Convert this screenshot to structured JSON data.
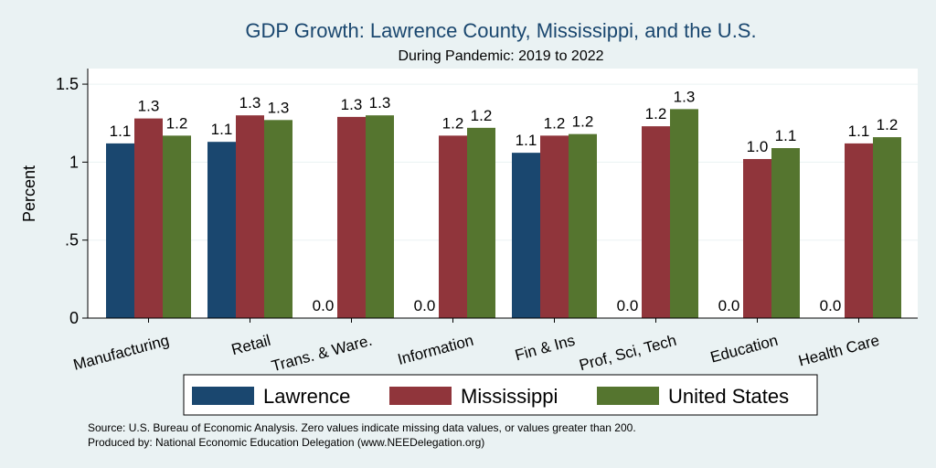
{
  "chart_data": {
    "type": "bar",
    "title": "GDP Growth: Lawrence County, Mississippi, and the U.S.",
    "subtitle": "During Pandemic: 2019 to 2022",
    "ylabel": "Percent",
    "ylim": [
      0,
      1.6
    ],
    "yticks": [
      0,
      0.5,
      1,
      1.5
    ],
    "ytick_labels": [
      "0",
      ".5",
      "1",
      "1.5"
    ],
    "grid": true,
    "legend_position": "bottom",
    "categories": [
      "Manufacturing",
      "Retail",
      "Trans. & Ware.",
      "Information",
      "Fin & Ins",
      "Prof, Sci, Tech",
      "Education",
      "Health Care"
    ],
    "series": [
      {
        "name": "Lawrence",
        "color": "#1a476f",
        "values": [
          1.12,
          1.13,
          0,
          0,
          1.06,
          0,
          0,
          0
        ],
        "labels": [
          "1.1",
          "1.1",
          "0.0",
          "0.0",
          "1.1",
          "0.0",
          "0.0",
          "0.0"
        ]
      },
      {
        "name": "Mississippi",
        "color": "#90353b",
        "values": [
          1.28,
          1.3,
          1.29,
          1.17,
          1.17,
          1.23,
          1.02,
          1.12
        ],
        "labels": [
          "1.3",
          "1.3",
          "1.3",
          "1.2",
          "1.2",
          "1.2",
          "1.0",
          "1.1"
        ]
      },
      {
        "name": "United States",
        "color": "#55752f",
        "values": [
          1.17,
          1.27,
          1.3,
          1.22,
          1.18,
          1.34,
          1.09,
          1.16
        ],
        "labels": [
          "1.2",
          "1.3",
          "1.3",
          "1.2",
          "1.2",
          "1.3",
          "1.1",
          "1.2"
        ]
      }
    ],
    "notes": [
      "Source: U.S. Bureau of Economic Analysis. Zero values indicate missing data values, or values greater than 200.",
      "Produced by: National Economic Education Delegation (www.NEEDelegation.org)"
    ]
  }
}
